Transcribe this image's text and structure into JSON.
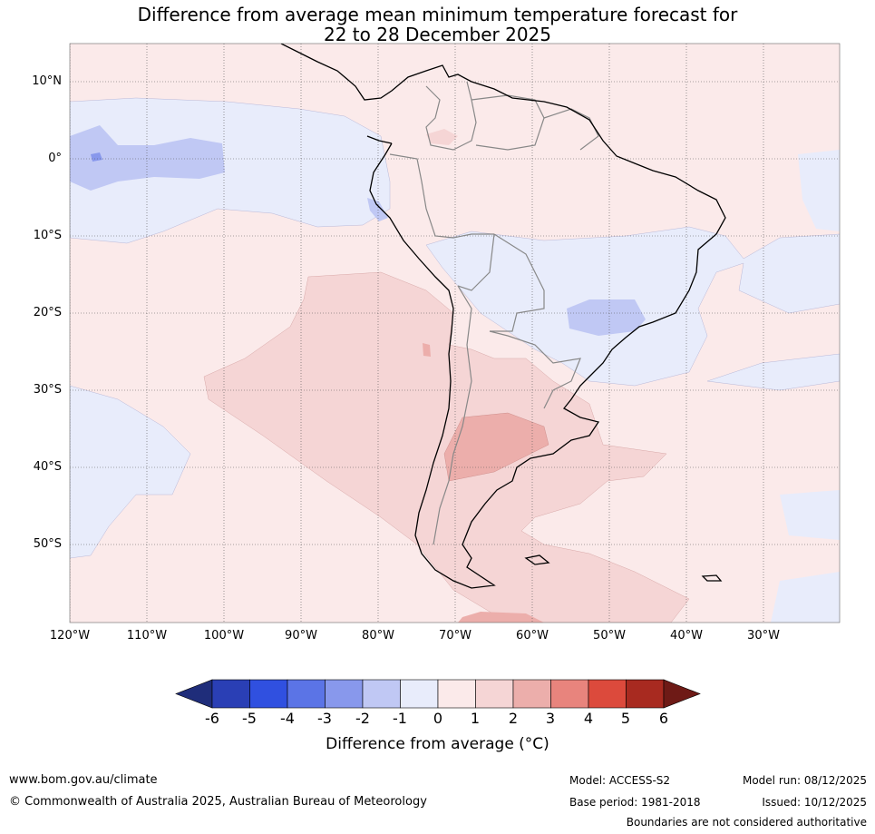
{
  "title": {
    "line1": "Difference from average mean minimum temperature forecast for",
    "line2": "22 to 28 December 2025"
  },
  "axes": {
    "lat_labels": [
      "10°N",
      "0°",
      "10°S",
      "20°S",
      "30°S",
      "40°S",
      "50°S"
    ],
    "lon_labels": [
      "120°W",
      "110°W",
      "100°W",
      "90°W",
      "80°W",
      "70°W",
      "60°W",
      "50°W",
      "40°W",
      "30°W"
    ]
  },
  "colorbar": {
    "ticks": [
      "-6",
      "-5",
      "-4",
      "-3",
      "-2",
      "-1",
      "0",
      "1",
      "2",
      "3",
      "4",
      "5",
      "6"
    ],
    "colors": [
      "#1f2d7a",
      "#2a3fb5",
      "#3050e0",
      "#5b74e6",
      "#8898ec",
      "#c0c8f4",
      "#e8ecfb",
      "#fbeaea",
      "#f5d5d5",
      "#ecaeab",
      "#e8847d",
      "#dc4a3c",
      "#a82a20",
      "#6e1a16"
    ],
    "label": "Difference from average (°C)"
  },
  "footer": {
    "url": "www.bom.gov.au/climate",
    "copyright": "© Commonwealth of Australia 2025, Australian Bureau of Meteorology",
    "model": "Model: ACCESS-S2",
    "base_period": "Base period: 1981-2018",
    "model_run": "Model run: 08/12/2025",
    "issued": "Issued: 10/12/2025",
    "disclaimer": "Boundaries are not considered authoritative"
  }
}
